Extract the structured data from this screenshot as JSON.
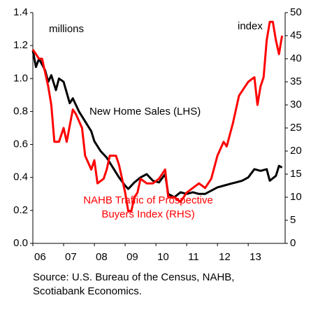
{
  "chart_data": {
    "type": "line",
    "annotations": {
      "left_unit": "millions",
      "right_unit": "index",
      "black_label": "New Home Sales (LHS)",
      "red_label": [
        "NAHB Traffic of Prospective",
        "Buyers Index (RHS)"
      ]
    },
    "source": [
      "Source: U.S. Bureau of the Census, NAHB,",
      "Scotiabank Economics."
    ],
    "xlim": [
      2006,
      2014.2
    ],
    "xticks": [
      {
        "value": 2006,
        "label": "06"
      },
      {
        "value": 2007,
        "label": "07"
      },
      {
        "value": 2008,
        "label": "08"
      },
      {
        "value": 2009,
        "label": "09"
      },
      {
        "value": 2010,
        "label": "10"
      },
      {
        "value": 2011,
        "label": "11"
      },
      {
        "value": 2012,
        "label": "12"
      },
      {
        "value": 2013,
        "label": "13"
      }
    ],
    "ylim": [
      0,
      1.4
    ],
    "yticks": [
      {
        "value": 0,
        "label": "0.0"
      },
      0.2,
      0.4,
      0.6,
      0.8,
      {
        "value": 1,
        "label": "1.0"
      },
      1.2,
      1.4
    ],
    "y2lim": [
      0,
      50
    ],
    "y2ticks": [
      0,
      5,
      10,
      15,
      20,
      25,
      30,
      35,
      40,
      45,
      50
    ],
    "series": [
      {
        "name": "New Home Sales (LHS)",
        "color": "#000000",
        "axis": "y",
        "x": [
          2006.0,
          2006.1,
          2006.2,
          2006.4,
          2006.5,
          2006.6,
          2006.75,
          2006.85,
          2007.0,
          2007.2,
          2007.3,
          2007.5,
          2007.7,
          2007.9,
          2008.0,
          2008.2,
          2008.4,
          2008.6,
          2008.8,
          2009.0,
          2009.1,
          2009.3,
          2009.5,
          2009.7,
          2009.9,
          2010.1,
          2010.3,
          2010.4,
          2010.6,
          2010.8,
          2011.0,
          2011.2,
          2011.4,
          2011.6,
          2011.8,
          2012.0,
          2012.2,
          2012.4,
          2012.6,
          2012.8,
          2013.0,
          2013.2,
          2013.4,
          2013.6,
          2013.7,
          2013.9,
          2014.0,
          2014.1
        ],
        "values": [
          1.17,
          1.07,
          1.12,
          1.05,
          0.98,
          1.02,
          0.93,
          1.0,
          0.98,
          0.85,
          0.88,
          0.8,
          0.74,
          0.68,
          0.62,
          0.56,
          0.52,
          0.46,
          0.4,
          0.35,
          0.33,
          0.37,
          0.4,
          0.42,
          0.38,
          0.37,
          0.42,
          0.3,
          0.28,
          0.31,
          0.3,
          0.31,
          0.3,
          0.3,
          0.32,
          0.34,
          0.35,
          0.36,
          0.37,
          0.38,
          0.4,
          0.45,
          0.44,
          0.45,
          0.38,
          0.41,
          0.47,
          0.46
        ]
      },
      {
        "name": "NAHB Traffic of Prospective Buyers Index (RHS)",
        "color": "#ff0000",
        "axis": "y2",
        "x": [
          2006.0,
          2006.2,
          2006.3,
          2006.5,
          2006.6,
          2006.7,
          2006.85,
          2007.0,
          2007.1,
          2007.3,
          2007.4,
          2007.6,
          2007.7,
          2007.9,
          2008.0,
          2008.1,
          2008.3,
          2008.4,
          2008.5,
          2008.7,
          2008.8,
          2009.0,
          2009.1,
          2009.2,
          2009.3,
          2009.4,
          2009.5,
          2009.7,
          2009.9,
          2010.1,
          2010.3,
          2010.4,
          2010.6,
          2010.8,
          2011.0,
          2011.2,
          2011.4,
          2011.6,
          2011.8,
          2012.0,
          2012.2,
          2012.3,
          2012.5,
          2012.7,
          2012.9,
          2013.0,
          2013.2,
          2013.3,
          2013.4,
          2013.5,
          2013.6,
          2013.7,
          2013.8,
          2013.9,
          2014.0,
          2014.1
        ],
        "values": [
          42,
          40,
          40,
          34,
          30,
          22,
          22,
          25,
          22,
          29,
          28,
          25,
          19,
          16,
          18,
          13,
          14,
          16,
          19,
          19,
          17,
          11,
          7,
          7,
          10,
          11,
          14,
          13,
          13,
          14,
          16,
          10,
          10,
          9,
          11,
          12,
          13,
          12,
          14,
          19,
          22,
          21,
          26,
          32,
          34,
          35,
          36,
          30,
          34,
          36,
          44,
          48,
          48,
          44,
          41,
          45
        ]
      }
    ]
  }
}
